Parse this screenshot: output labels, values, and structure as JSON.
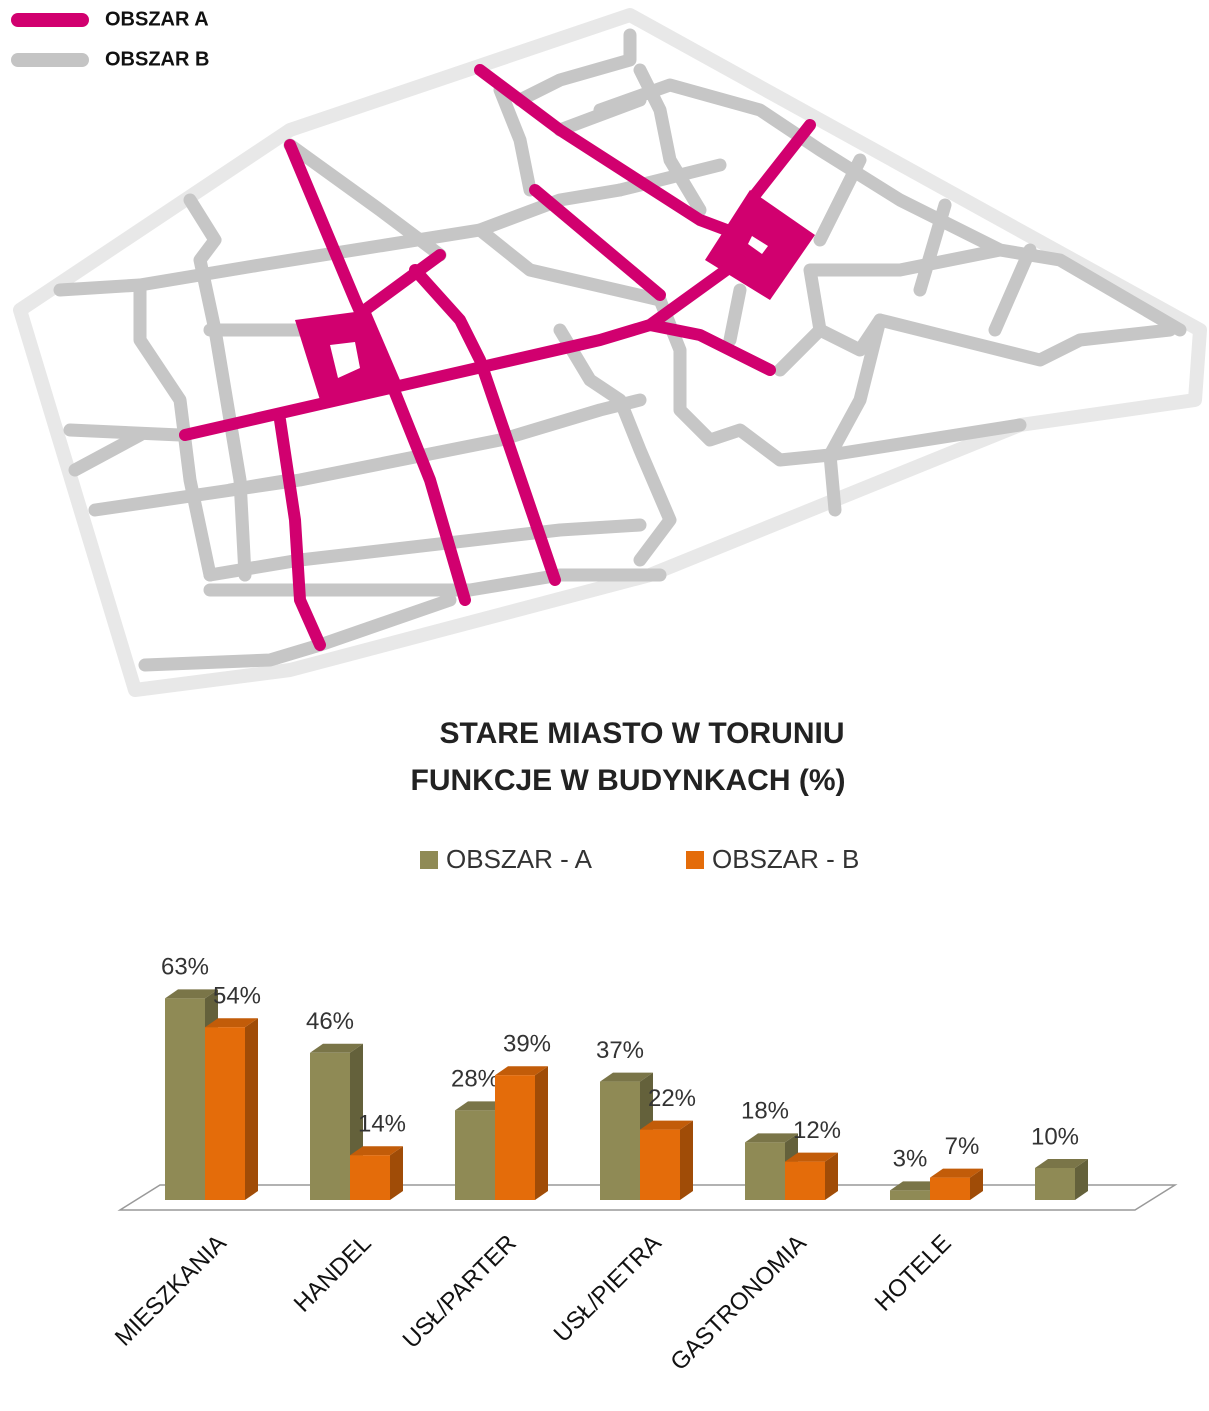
{
  "map": {
    "legend": [
      {
        "label": "OBSZAR A",
        "color": "#d1006f"
      },
      {
        "label": "OBSZAR B",
        "color": "#c4c4c4"
      }
    ]
  },
  "chart_data": {
    "type": "bar3d",
    "title": [
      "STARE MIASTO W TORUNIU",
      "FUNKCJE W BUDYNKACH (%)"
    ],
    "categories": [
      "MIESZKANIA",
      "HANDEL",
      "USŁ/PARTER",
      "USŁ/PIETRA",
      "GASTRONOMIA",
      "HOTELE",
      null
    ],
    "series": [
      {
        "name": "OBSZAR - A",
        "color": "#8f8a55",
        "values": [
          63,
          46,
          28,
          37,
          18,
          3,
          10
        ],
        "value_labels": [
          "63%",
          "46%",
          "28%",
          "37%",
          "18%",
          "3%",
          "10%"
        ]
      },
      {
        "name": "OBSZAR - B",
        "color": "#e46c0a",
        "values": [
          54,
          14,
          39,
          22,
          12,
          7,
          null
        ],
        "value_labels": [
          "54%",
          "14%",
          "39%",
          "22%",
          "12%",
          "7%",
          null
        ]
      }
    ]
  }
}
